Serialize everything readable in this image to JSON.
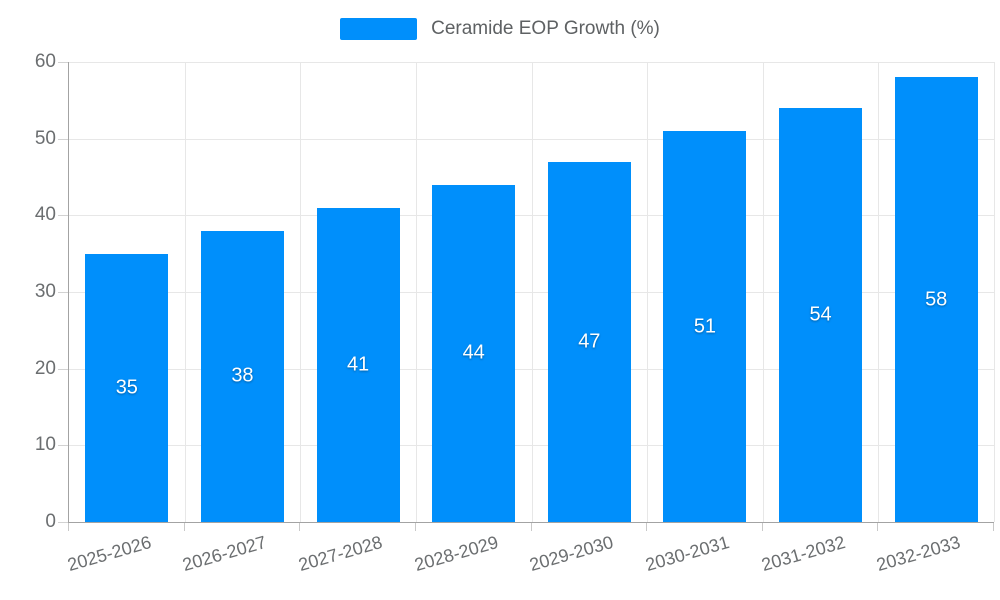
{
  "legend": {
    "label": "Ceramide EOP Growth (%)"
  },
  "colors": {
    "bar": "#008FFB",
    "grid": "#e7e7e7",
    "axis": "#a3a3a3",
    "tick": "#d2d2d2",
    "axis_text": "#6b6e70",
    "datalabel_text": "#ffffff",
    "legend_text": "#5e6163"
  },
  "chart_data": {
    "type": "bar",
    "title": "",
    "xlabel": "",
    "ylabel": "",
    "categories": [
      "2025-2026",
      "2026-2027",
      "2027-2028",
      "2028-2029",
      "2029-2030",
      "2030-2031",
      "2031-2032",
      "2032-2033"
    ],
    "values": [
      35,
      38,
      41,
      44,
      47,
      51,
      54,
      58
    ],
    "series_name": "Ceramide EOP Growth (%)",
    "ylim": [
      0,
      60
    ],
    "yticks": [
      0,
      10,
      20,
      30,
      40,
      50,
      60
    ],
    "grid": true,
    "legend_position": "top",
    "bar_labels_visible": true
  }
}
